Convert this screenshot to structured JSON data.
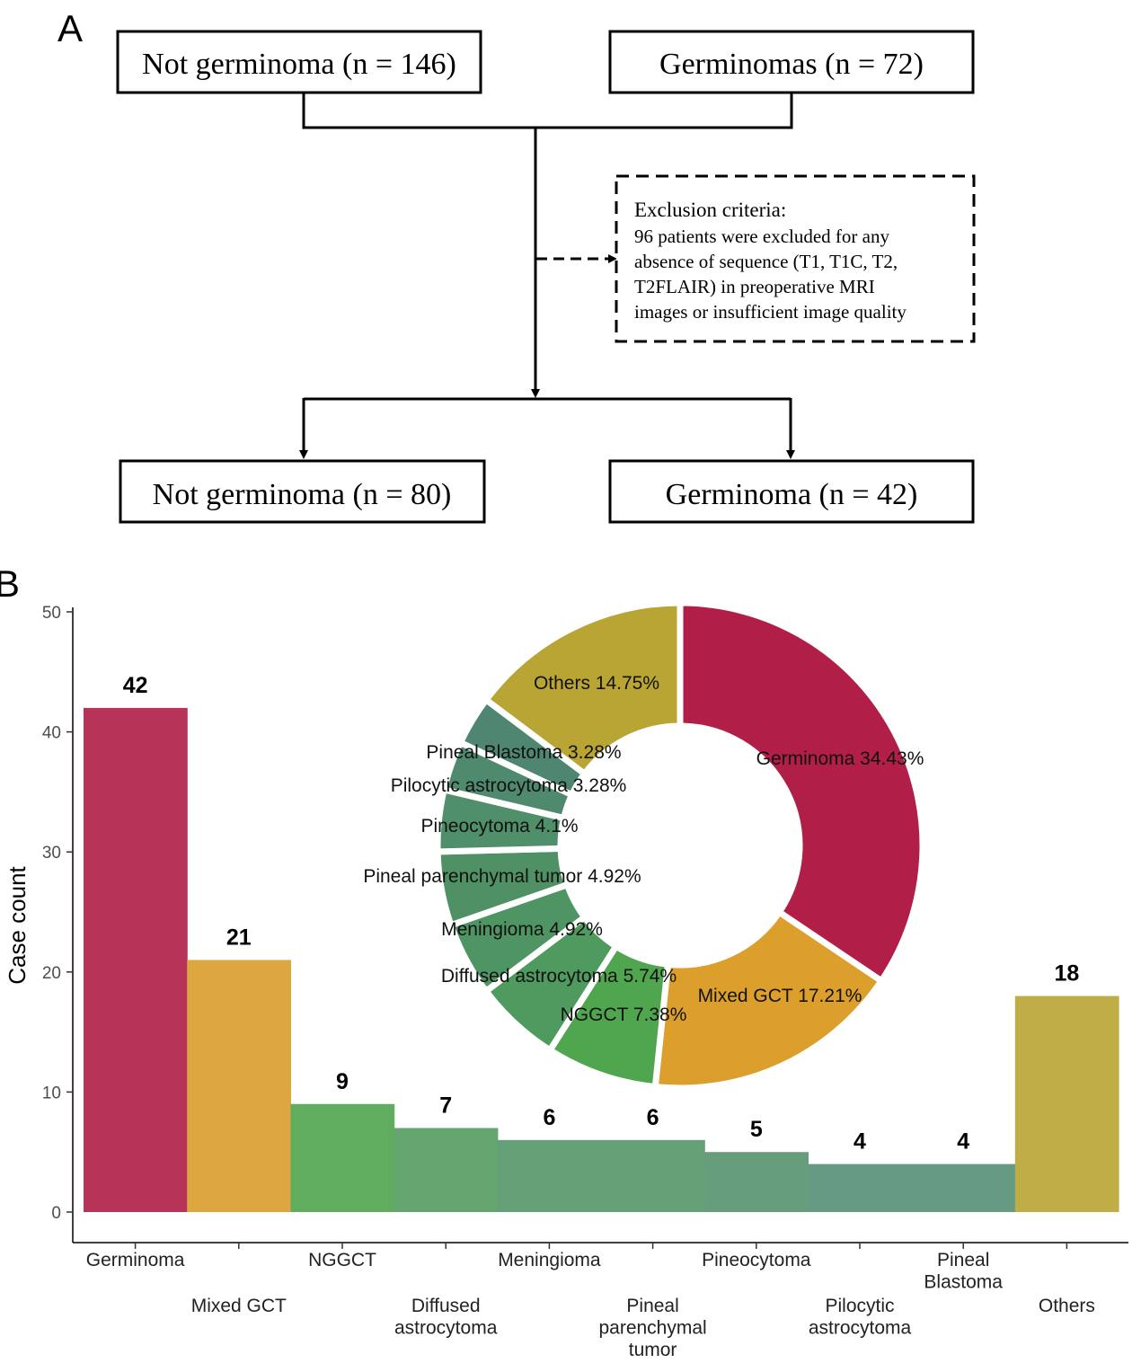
{
  "panel_a": {
    "label": "A",
    "top_left_box": "Not germinoma (n = 146)",
    "top_right_box": "Germinomas (n = 72)",
    "exclusion": {
      "title": "Exclusion criteria:",
      "lines": [
        "96 patients were excluded for any",
        "absence of sequence (T1, T1C, T2,",
        "T2FLAIR) in preoperative MRI",
        "images or insufficient image quality"
      ]
    },
    "bottom_left_box": "Not germinoma (n = 80)",
    "bottom_right_box": "Germinoma (n = 42)"
  },
  "panel_b": {
    "label": "B"
  },
  "chart_data": [
    {
      "type": "bar",
      "ylabel": "Case count",
      "xlabel": "",
      "ylim": [
        0,
        50
      ],
      "yticks": [
        0,
        10,
        20,
        30,
        40,
        50
      ],
      "grid": false,
      "categories": [
        "Germinoma",
        "Mixed GCT",
        "NGGCT",
        "Diffused astrocytoma",
        "Meningioma",
        "Pineal parenchymal tumor",
        "Pineocytoma",
        "Pilocytic astrocytoma",
        "Pineal Blastoma",
        "Others"
      ],
      "tick_labels": [
        [
          "Germinoma"
        ],
        [
          "Mixed GCT"
        ],
        [
          "NGGCT"
        ],
        [
          "Diffused",
          "astrocytoma"
        ],
        [
          "Meningioma"
        ],
        [
          "Pineal",
          "parenchymal",
          "tumor"
        ],
        [
          "Pineocytoma"
        ],
        [
          "Pilocytic",
          "astrocytoma"
        ],
        [
          "Pineal",
          "Blastoma"
        ],
        [
          "Others"
        ]
      ],
      "values": [
        42,
        21,
        9,
        7,
        6,
        6,
        5,
        4,
        4,
        18
      ],
      "colors": [
        "#b83358",
        "#dea640",
        "#60ad60",
        "#65a670",
        "#66a076",
        "#66a076",
        "#669e7c",
        "#669a82",
        "#669a82",
        "#bfae48"
      ]
    },
    {
      "type": "pie",
      "donut": true,
      "slices": [
        {
          "label": "Germinoma",
          "percent": 34.43,
          "text": "Germinoma 34.43%",
          "color": "#b11e47"
        },
        {
          "label": "Mixed GCT",
          "percent": 17.21,
          "text": "Mixed GCT 17.21%",
          "color": "#dc9f2b"
        },
        {
          "label": "NGGCT",
          "percent": 7.38,
          "text": "NGGCT 7.38%",
          "color": "#4fa64f"
        },
        {
          "label": "Diffused astrocytoma",
          "percent": 5.74,
          "text": "Diffused astrocytoma 5.74%",
          "color": "#4f9a5e"
        },
        {
          "label": "Meningioma",
          "percent": 4.92,
          "text": "Meningioma 4.92%",
          "color": "#4f9563"
        },
        {
          "label": "Pineal parenchymal tumor",
          "percent": 4.92,
          "text": "Pineal parenchymal tumor 4.92%",
          "color": "#4f9165"
        },
        {
          "label": "Pineocytoma",
          "percent": 4.1,
          "text": "Pineocytoma 4.1%",
          "color": "#4f8f6a"
        },
        {
          "label": "Pilocytic astrocytoma",
          "percent": 3.28,
          "text": "Pilocytic astrocytoma 3.28%",
          "color": "#4f8a6e"
        },
        {
          "label": "Pineal Blastoma",
          "percent": 3.28,
          "text": "Pineal Blastoma 3.28%",
          "color": "#4f8672"
        },
        {
          "label": "Others",
          "percent": 14.75,
          "text": "Others 14.75%",
          "color": "#b8a533"
        }
      ]
    }
  ]
}
